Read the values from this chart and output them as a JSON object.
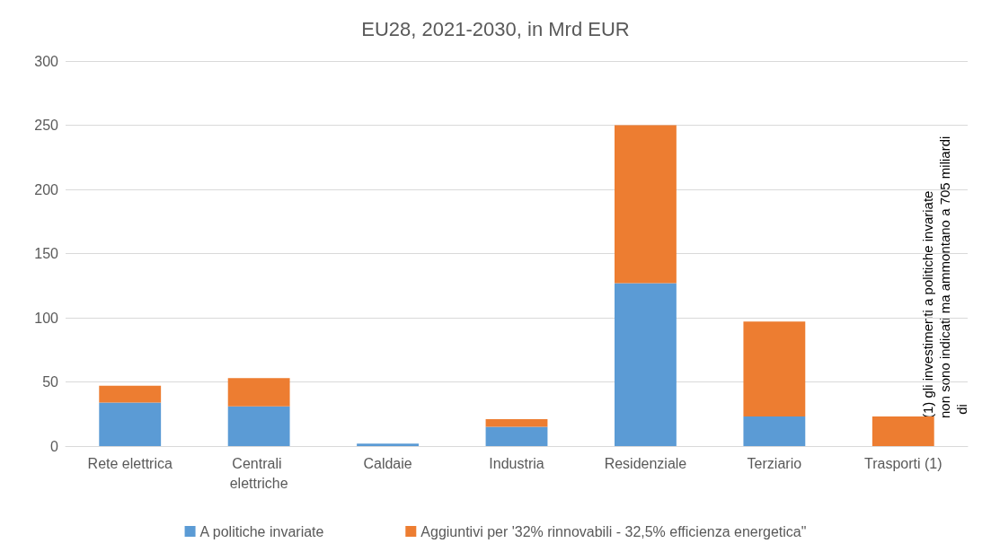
{
  "chart_data": {
    "type": "bar",
    "stacked": true,
    "title": "EU28, 2021-2030, in Mrd EUR",
    "categories": [
      "Rete elettrica",
      "Centrali elettriche",
      "Caldaie",
      "Industria",
      "Residenziale",
      "Terziario",
      "Trasporti (1)"
    ],
    "series": [
      {
        "name": "A politiche invariate",
        "color": "#5b9bd5",
        "values": [
          34,
          31,
          2,
          15,
          127,
          23,
          null
        ]
      },
      {
        "name": "Aggiuntivi per '32% rinnovabili - 32,5% efficienza energetica\"",
        "color": "#ed7d31",
        "values": [
          13,
          22,
          0,
          6,
          123,
          74,
          23
        ]
      }
    ],
    "ylim": [
      0,
      300
    ],
    "yticks": [
      0,
      50,
      100,
      150,
      200,
      250,
      300
    ],
    "grid": "y",
    "legend": "bottom",
    "annotations": [
      "(1) gli investimenti a politiche invariate non sono indicati ma ammontano a 705 miliardi di"
    ]
  }
}
